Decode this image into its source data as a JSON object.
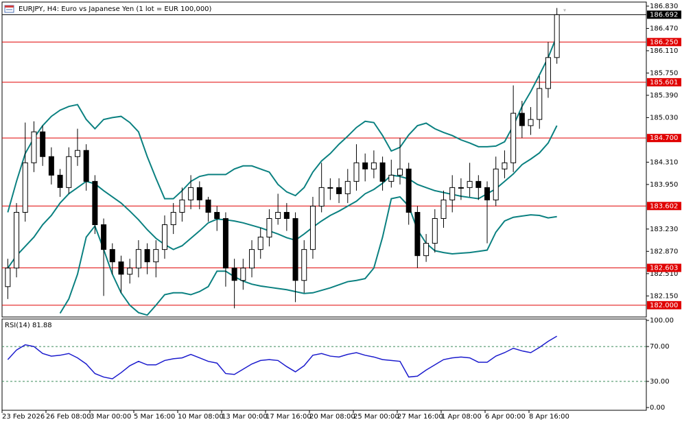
{
  "chart_data": [
    {
      "type": "candlestick",
      "title": "EURJPY, H4:  Euro vs Japanese Yen (1 lot = EUR 100,000)",
      "open": [
        182.3,
        182.6,
        183.5,
        184.3,
        184.8,
        184.4,
        184.1,
        183.9,
        184.4,
        184.5,
        184.0,
        183.3,
        182.9,
        182.7,
        182.5,
        182.6,
        182.9,
        182.7,
        182.9,
        183.3,
        183.5,
        183.7,
        183.9,
        183.7,
        183.5,
        183.4,
        182.6,
        182.4,
        182.6,
        182.9,
        183.1,
        183.4,
        183.5,
        183.4,
        182.4,
        182.9,
        183.6,
        183.9,
        183.9,
        183.8,
        184.0,
        184.3,
        184.2,
        184.3,
        184.0,
        184.1,
        184.2,
        183.5,
        182.8,
        183.0,
        183.4,
        183.7,
        183.9,
        183.9,
        184.0,
        183.9,
        183.7,
        184.2,
        184.3,
        185.1,
        184.9,
        185.0,
        185.5,
        186.0
      ],
      "high": [
        182.75,
        183.65,
        184.95,
        184.97,
        184.9,
        184.55,
        184.2,
        184.55,
        184.85,
        184.6,
        184.1,
        183.4,
        183.0,
        182.8,
        182.75,
        183.05,
        183.0,
        183.05,
        183.45,
        183.65,
        183.9,
        184.1,
        184.0,
        183.75,
        183.6,
        183.5,
        182.75,
        182.75,
        183.05,
        183.25,
        183.55,
        183.8,
        183.65,
        183.5,
        183.05,
        183.75,
        184.3,
        184.05,
        184.05,
        184.2,
        184.6,
        184.45,
        184.5,
        184.4,
        184.35,
        184.7,
        184.3,
        183.6,
        183.15,
        183.55,
        183.85,
        184.1,
        184.05,
        184.3,
        184.1,
        184.0,
        184.4,
        184.5,
        185.55,
        185.3,
        185.2,
        185.7,
        186.25,
        186.8
      ],
      "low": [
        182.1,
        182.45,
        183.35,
        184.15,
        184.25,
        183.95,
        183.75,
        183.8,
        184.25,
        183.85,
        183.15,
        182.15,
        182.5,
        182.2,
        182.35,
        182.45,
        182.5,
        182.45,
        182.75,
        183.15,
        183.35,
        183.55,
        183.55,
        183.35,
        183.2,
        182.3,
        181.95,
        182.25,
        182.45,
        182.75,
        182.95,
        183.3,
        183.2,
        182.05,
        182.2,
        182.75,
        183.5,
        183.7,
        183.65,
        183.65,
        183.85,
        184.0,
        184.05,
        183.85,
        183.9,
        183.95,
        183.3,
        182.6,
        182.7,
        182.85,
        183.25,
        183.5,
        183.7,
        183.75,
        183.7,
        183.0,
        183.6,
        184.05,
        184.15,
        184.7,
        184.75,
        184.85,
        185.35,
        185.9
      ],
      "close": [
        182.6,
        183.5,
        184.3,
        184.8,
        184.4,
        184.1,
        183.9,
        184.4,
        184.5,
        184.0,
        183.3,
        182.9,
        182.7,
        182.5,
        182.6,
        182.9,
        182.7,
        182.9,
        183.3,
        183.5,
        183.7,
        183.9,
        183.7,
        183.5,
        183.4,
        182.6,
        182.4,
        182.6,
        182.9,
        183.1,
        183.4,
        183.5,
        183.4,
        182.4,
        182.9,
        183.6,
        183.9,
        183.9,
        183.8,
        184.0,
        184.3,
        184.2,
        184.3,
        184.0,
        184.1,
        184.2,
        183.5,
        182.8,
        183.0,
        183.4,
        183.7,
        183.9,
        183.9,
        184.0,
        183.9,
        183.7,
        184.2,
        184.3,
        185.1,
        184.9,
        185.0,
        185.5,
        186.0,
        186.692
      ],
      "up_color": "#ffffff",
      "down_color": "#000000",
      "ylim": [
        181.81,
        186.896
      ],
      "yticks": [
        {
          "value": 186.83,
          "label": "186.830"
        },
        {
          "value": 186.47,
          "label": "186.470"
        },
        {
          "value": 186.11,
          "label": "186.110"
        },
        {
          "value": 185.75,
          "label": "185.750"
        },
        {
          "value": 185.39,
          "label": "185.390"
        },
        {
          "value": 185.03,
          "label": "185.030"
        },
        {
          "value": 184.31,
          "label": "184.310"
        },
        {
          "value": 183.95,
          "label": "183.950"
        },
        {
          "value": 183.23,
          "label": "183.230"
        },
        {
          "value": 182.87,
          "label": "182.870"
        },
        {
          "value": 182.51,
          "label": "182.510"
        },
        {
          "value": 182.15,
          "label": "182.150"
        }
      ],
      "levels": [
        {
          "value": 186.25,
          "label": "186.250"
        },
        {
          "value": 185.601,
          "label": "185.601"
        },
        {
          "value": 184.7,
          "label": "184.700"
        },
        183.602,
        182.603,
        {
          "value": 182.0,
          "label": "182.000"
        }
      ],
      "level_color": "#e00000",
      "current_price": 186.692,
      "series": [
        {
          "color": "#0a8080",
          "values": [
            183.5,
            184.0,
            184.45,
            184.7,
            184.9,
            185.05,
            185.15,
            185.21,
            185.24,
            185.0,
            184.85,
            185.0,
            185.03,
            185.05,
            184.95,
            184.8,
            184.4,
            184.05,
            183.72,
            183.72,
            183.85,
            184.0,
            184.08,
            184.11,
            184.11,
            184.11,
            184.2,
            184.25,
            184.25,
            184.2,
            184.15,
            183.95,
            183.83,
            183.77,
            183.9,
            184.15,
            184.33,
            184.45,
            184.6,
            184.73,
            184.87,
            184.97,
            184.95,
            184.74,
            184.49,
            184.55,
            184.75,
            184.9,
            184.94,
            184.85,
            184.79,
            184.74,
            184.67,
            184.62,
            184.56,
            184.56,
            184.57,
            184.64,
            184.9,
            185.21,
            185.45,
            185.72,
            186.0,
            186.35
          ]
        },
        {
          "color": "#0a8080",
          "values": [
            182.6,
            182.8,
            182.95,
            183.1,
            183.3,
            183.45,
            183.65,
            183.8,
            183.9,
            184.0,
            183.96,
            183.85,
            183.75,
            183.65,
            183.52,
            183.38,
            183.22,
            183.08,
            182.98,
            182.9,
            182.96,
            183.08,
            183.2,
            183.33,
            183.39,
            183.38,
            183.36,
            183.33,
            183.29,
            183.25,
            183.2,
            183.15,
            183.09,
            183.05,
            183.15,
            183.26,
            183.36,
            183.45,
            183.52,
            183.6,
            183.68,
            183.8,
            183.87,
            183.97,
            184.1,
            184.08,
            184.04,
            183.95,
            183.9,
            183.85,
            183.82,
            183.79,
            183.76,
            183.74,
            183.72,
            183.8,
            183.88,
            184.0,
            184.12,
            184.27,
            184.36,
            184.46,
            184.62,
            184.9
          ]
        },
        {
          "color": "#0a8080",
          "values": [
            null,
            null,
            null,
            null,
            null,
            null,
            181.87,
            182.1,
            182.5,
            183.1,
            183.28,
            182.9,
            182.5,
            182.2,
            182.0,
            181.88,
            181.84,
            182.0,
            182.17,
            182.2,
            182.2,
            182.17,
            182.22,
            182.3,
            182.55,
            182.55,
            182.46,
            182.39,
            182.34,
            182.31,
            182.29,
            182.27,
            182.25,
            182.22,
            182.19,
            182.2,
            182.24,
            182.28,
            182.33,
            182.38,
            182.4,
            182.43,
            182.6,
            183.1,
            183.72,
            183.75,
            183.6,
            183.22,
            183.0,
            182.88,
            182.85,
            182.83,
            182.84,
            182.85,
            182.87,
            182.89,
            183.18,
            183.36,
            183.42,
            183.44,
            183.46,
            183.45,
            183.41,
            183.43
          ]
        }
      ]
    },
    {
      "type": "line",
      "title": "RSI(14) 81.88",
      "ylim": [
        0,
        100
      ],
      "yticks": [
        {
          "value": 100,
          "label": "100.00"
        },
        {
          "value": 70,
          "label": "70.00"
        },
        {
          "value": 30,
          "label": "30.00"
        },
        {
          "value": 0,
          "label": "0.00"
        }
      ],
      "series": [
        {
          "color": "#1a1acd",
          "values": [
            55,
            66,
            72,
            70,
            62,
            59,
            60,
            62,
            57,
            50,
            39,
            35,
            33,
            40,
            48,
            53,
            49,
            49,
            54,
            56,
            57,
            61,
            57,
            53,
            51,
            39,
            38,
            44,
            50,
            54,
            55,
            54,
            47,
            41,
            48,
            60,
            62,
            59,
            58,
            61,
            63,
            60,
            58,
            55,
            54,
            53,
            35,
            36,
            43,
            49,
            55,
            57,
            58,
            57,
            52,
            52,
            59,
            63,
            68,
            65,
            63,
            69,
            76,
            81.88
          ]
        }
      ],
      "time_labels": [
        "23 Feb 2026",
        "26 Feb 08:00",
        "3 Mar 00:00",
        "5 Mar 16:00",
        "10 Mar 08:00",
        "13 Mar 00:00",
        "17 Mar 16:00",
        "20 Mar 08:00",
        "25 Mar 00:00",
        "27 Mar 16:00",
        "1 Apr 08:00",
        "6 Apr 00:00",
        "8 Apr 16:00"
      ]
    }
  ]
}
